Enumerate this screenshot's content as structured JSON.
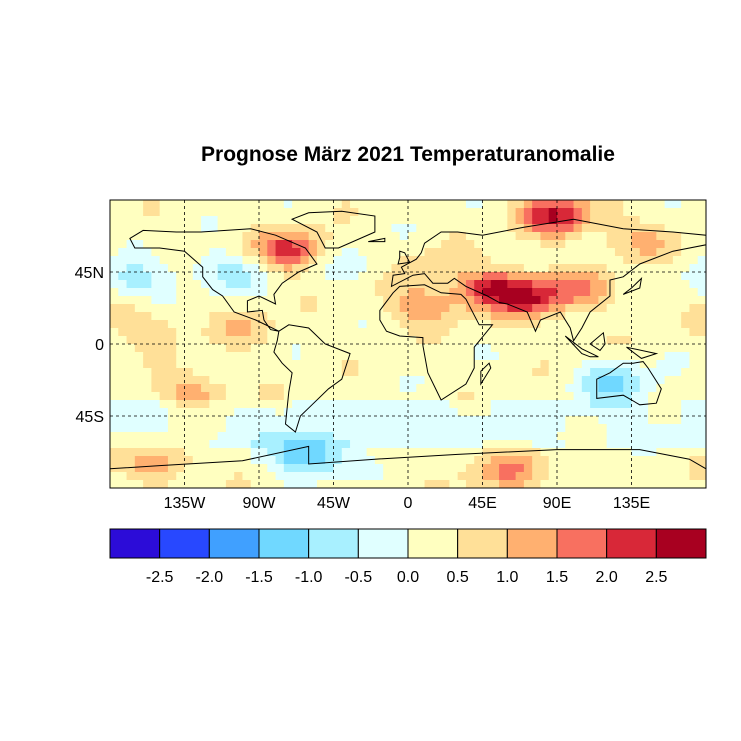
{
  "chart_data": {
    "type": "heatmap",
    "title": "Prognose März 2021 Temperaturanomalie",
    "projection": "equirectangular",
    "lon_range": [
      -180,
      180
    ],
    "lat_range": [
      -90,
      90
    ],
    "x_ticks": [
      {
        "value": -135,
        "label": "135W"
      },
      {
        "value": -90,
        "label": "90W"
      },
      {
        "value": -45,
        "label": "45W"
      },
      {
        "value": 0,
        "label": "0"
      },
      {
        "value": 45,
        "label": "45E"
      },
      {
        "value": 90,
        "label": "90E"
      },
      {
        "value": 135,
        "label": "135E"
      }
    ],
    "y_ticks": [
      {
        "value": 45,
        "label": "45N"
      },
      {
        "value": 0,
        "label": "0"
      },
      {
        "value": -45,
        "label": "45S"
      }
    ],
    "grid": "dashed",
    "colorbar": {
      "breaks": [
        "-2.5",
        "-2.0",
        "-1.5",
        "-1.0",
        "-0.5",
        "0.0",
        "0.5",
        "1.0",
        "1.5",
        "2.0",
        "2.5"
      ],
      "colors": [
        "#2c0cd8",
        "#2848ff",
        "#40a0ff",
        "#70d8ff",
        "#a8f0ff",
        "#e0ffff",
        "#ffffc0",
        "#ffe098",
        "#ffb070",
        "#f87060",
        "#d82838",
        "#a80020"
      ]
    },
    "anomaly_regions": [
      {
        "lon": 90,
        "lat": 80,
        "value": 2.2
      },
      {
        "lon": -70,
        "lat": 58,
        "value": 2.0
      },
      {
        "lon": 52,
        "lat": 35,
        "value": 2.0
      },
      {
        "lon": 75,
        "lat": 28,
        "value": 1.8
      },
      {
        "lon": 10,
        "lat": 25,
        "value": 1.2
      },
      {
        "lon": 105,
        "lat": 35,
        "value": 1.0
      },
      {
        "lon": 140,
        "lat": 65,
        "value": 0.8
      },
      {
        "lon": -165,
        "lat": 40,
        "value": -1.0
      },
      {
        "lon": -110,
        "lat": 45,
        "value": -1.0
      },
      {
        "lon": 125,
        "lat": -25,
        "value": -1.3
      },
      {
        "lon": -40,
        "lat": 50,
        "value": -0.6
      },
      {
        "lon": -60,
        "lat": -70,
        "value": -2.0
      },
      {
        "lon": -130,
        "lat": -30,
        "value": 1.0
      },
      {
        "lon": 0,
        "lat": -50,
        "value": -0.4
      },
      {
        "lon": 60,
        "lat": -80,
        "value": 1.2
      },
      {
        "lon": -150,
        "lat": -75,
        "value": 1.0
      },
      {
        "lon": -100,
        "lat": 10,
        "value": 0.6
      },
      {
        "lon": 15,
        "lat": 50,
        "value": 0.4
      },
      {
        "lon": -160,
        "lat": 10,
        "value": 0.7
      }
    ]
  }
}
